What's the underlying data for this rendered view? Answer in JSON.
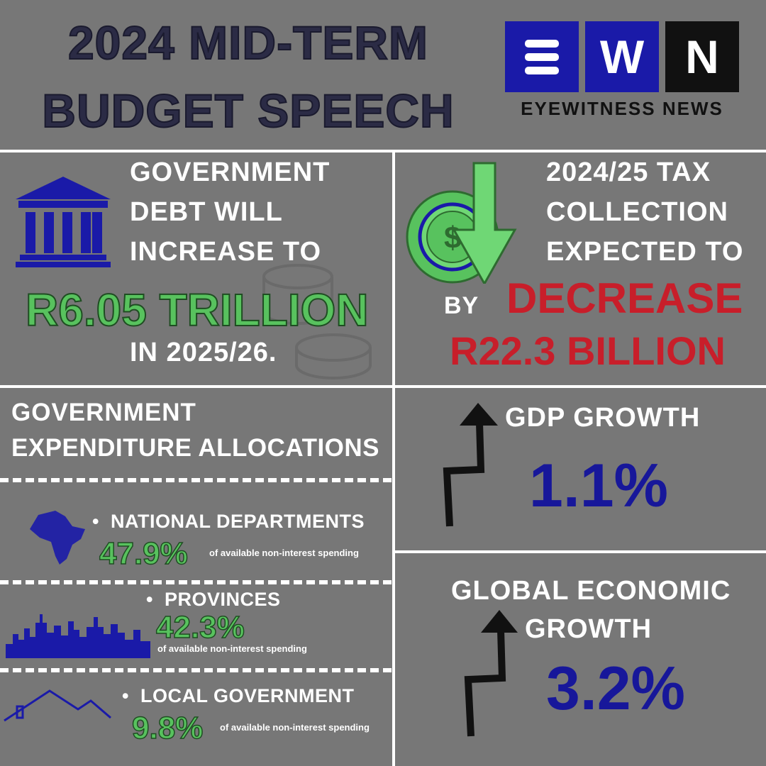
{
  "header": {
    "title_line1": "2024 MID-TERM",
    "title_line2": "BUDGET SPEECH",
    "logo_letters": [
      "W",
      "N"
    ],
    "logo_caption": "EYEWITNESS NEWS"
  },
  "debt": {
    "line1": "GOVERNMENT",
    "line2": "DEBT WILL",
    "line3": "INCREASE TO",
    "amount": "R6.05 TRILLION",
    "period": "IN 2025/26."
  },
  "tax": {
    "line1": "2024/25 TAX",
    "line2": "COLLECTION",
    "line3": "EXPECTED TO",
    "by": "BY",
    "direction": "DECREASE",
    "amount": "R22.3 BILLION"
  },
  "expenditure": {
    "title_line1": "GOVERNMENT",
    "title_line2": "EXPENDITURE ALLOCATIONS",
    "items": [
      {
        "label": "NATIONAL DEPARTMENTS",
        "percent": "47.9%",
        "note": "of available non-interest spending"
      },
      {
        "label": "PROVINCES",
        "percent": "42.3%",
        "note": "of available non-interest spending"
      },
      {
        "label": "LOCAL GOVERNMENT",
        "percent": "9.8%",
        "note": "of available non-interest spending"
      }
    ]
  },
  "gdp": {
    "label": "GDP GROWTH",
    "value": "1.1%"
  },
  "global": {
    "label_line1": "GLOBAL ECONOMIC",
    "label_line2": "GROWTH",
    "value": "3.2%"
  },
  "colors": {
    "background": "#777777",
    "accent_green": "#58c25e",
    "accent_red": "#c81e2a",
    "accent_blue": "#17179a",
    "logo_blue": "#1a1aa8"
  }
}
